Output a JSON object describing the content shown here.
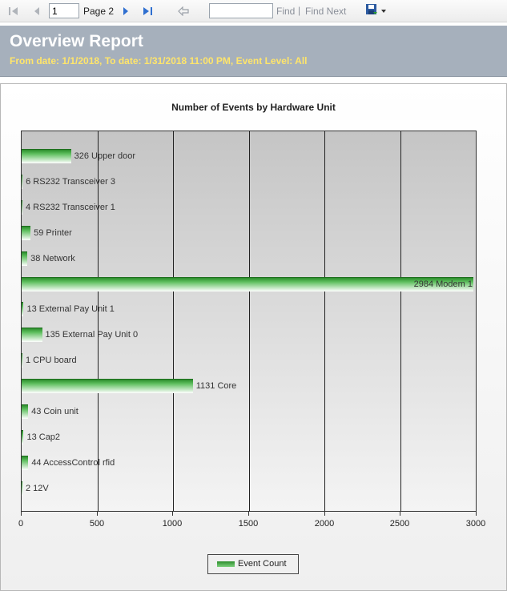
{
  "toolbar": {
    "page_value": "1",
    "page_label": "Page 2",
    "find_placeholder": "",
    "find_label": "Find",
    "separator": "|",
    "find_next_label": "Find Next"
  },
  "header": {
    "title": "Overview Report",
    "subtitle": "From date: 1/1/2018, To date: 1/31/2018 11:00 PM, Event Level: All"
  },
  "colors": {
    "header_bg": "#a6b0bc",
    "subtitle": "#ffe56b",
    "bar": "#2c8d2c"
  },
  "chart_data": {
    "type": "bar",
    "orientation": "horizontal",
    "title": "Number of Events by Hardware Unit",
    "xlim": [
      0,
      3000
    ],
    "xticks": [
      0,
      500,
      1000,
      1500,
      2000,
      2500,
      3000
    ],
    "categories": [
      "Upper door",
      "RS232 Transceiver 3",
      "RS232 Transceiver 1",
      "Printer",
      "Network",
      "Modem 1",
      "External Pay Unit 1",
      "External Pay Unit 0",
      "CPU board",
      "Core",
      "Coin unit",
      "Cap2",
      "AccessControl rfid",
      "12V"
    ],
    "series": [
      {
        "name": "Event Count",
        "values": [
          326,
          6,
          4,
          59,
          38,
          2984,
          13,
          135,
          1,
          1131,
          43,
          13,
          44,
          2
        ]
      }
    ],
    "legend": "bottom-center",
    "grid": true
  }
}
